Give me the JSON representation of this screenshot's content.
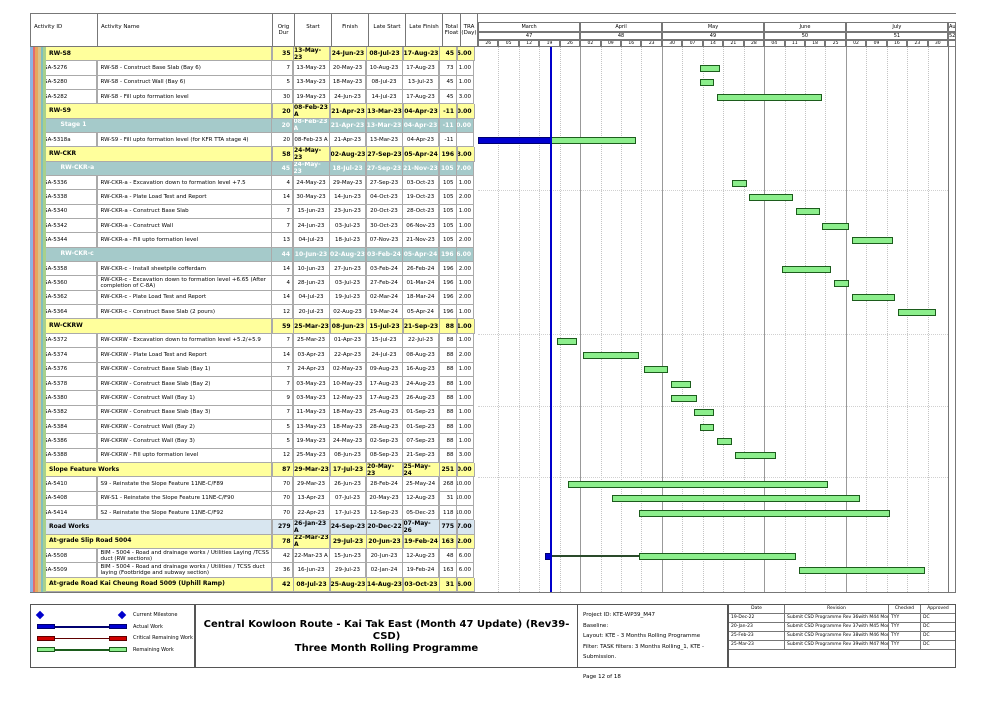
{
  "title_block": {
    "line1": "Central Kowloon Route - Kai Tak East (Month 47 Update) (Rev39- CSD)",
    "line2": "Three Month Rolling Programme"
  },
  "info_block": {
    "project_id": "Project ID: KTE-WP39_M47",
    "baseline": "Baseline:",
    "layout": "Layout: KTE - 3 Months Rolling Programme",
    "filter": "Filter: TASK filters: 3 Months Rolling_1, KTE - Submission.",
    "page": "Page 12 of 18"
  },
  "legend": [
    {
      "kind": "milestone",
      "label": "Current Milestone",
      "color": "#0000cc"
    },
    {
      "kind": "bar",
      "label": "Actual Work",
      "fill": "#0000d0",
      "border": "#000070"
    },
    {
      "kind": "bar",
      "label": "Critical Remaining Work",
      "fill": "#d00000",
      "border": "#600000"
    },
    {
      "kind": "bar",
      "label": "Remaining Work",
      "fill": "#8cee8c",
      "border": "#1c5c1c"
    }
  ],
  "revisions": {
    "headers": [
      "Date",
      "Revision",
      "Checked",
      "Approved"
    ],
    "rows": [
      [
        "19-Dec-22",
        "Submit CSD Programme Rev 36with M44 Mon...",
        "TYY",
        "DC"
      ],
      [
        "20-Jan-23",
        "Submit CSD Programme Rev 37with M45 Mon...",
        "TYY",
        "DC"
      ],
      [
        "25-Feb-23",
        "Submit CSD Programme Rev 38with M46 Mon...",
        "TYY",
        "DC"
      ],
      [
        "25-Mar-23",
        "Submit CSD Programme Rev 39with M47 Mon...",
        "TYY",
        "DC"
      ]
    ]
  },
  "table": {
    "columns": [
      "Activity ID",
      "Activity Name",
      "Orig Dur",
      "Start",
      "Finish",
      "Late Start",
      "Late Finish",
      "Total Float",
      "TRA (Day)"
    ],
    "rows": [
      {
        "type": "g1",
        "id": "",
        "name": "RW-S8",
        "d": "35",
        "s": "13-May-23",
        "f": "24-Jun-23",
        "ls": "08-Jul-23",
        "lf": "17-Aug-23",
        "fl": "45",
        "tra": "5.00"
      },
      {
        "type": "t",
        "id": "SA-5276",
        "name": "RW-S8 - Construct Base Slab (Bay 6)",
        "d": "7",
        "s": "13-May-23",
        "f": "20-May-23",
        "ls": "10-Aug-23",
        "lf": "17-Aug-23",
        "fl": "73",
        "tra": "1.00"
      },
      {
        "type": "t",
        "id": "SA-5280",
        "name": "RW-S8 - Construct Wall (Bay 6)",
        "d": "5",
        "s": "13-May-23",
        "f": "18-May-23",
        "ls": "08-Jul-23",
        "lf": "13-Jul-23",
        "fl": "45",
        "tra": "1.00"
      },
      {
        "type": "t",
        "id": "SA-5282",
        "name": "RW-S8 - Fill upto formation level",
        "d": "30",
        "s": "19-May-23",
        "f": "24-Jun-23",
        "ls": "14-Jul-23",
        "lf": "17-Aug-23",
        "fl": "45",
        "tra": "3.00"
      },
      {
        "type": "g1",
        "id": "",
        "name": "RW-S9",
        "d": "20",
        "s": "08-Feb-23 A",
        "f": "21-Apr-23",
        "ls": "13-Mar-23",
        "lf": "04-Apr-23",
        "fl": "-11",
        "tra": "0.00"
      },
      {
        "type": "g2",
        "id": "",
        "name": "Stage 1",
        "d": "20",
        "s": "08-Feb-23 A",
        "f": "21-Apr-23",
        "ls": "13-Mar-23",
        "lf": "04-Apr-23",
        "fl": "-11",
        "tra": "0.00"
      },
      {
        "type": "t",
        "id": "SA-5318a",
        "name": "RW-S9 - Fill upto formation level (for KFR TTA stage 4)",
        "d": "20",
        "s": "08-Feb-23 A",
        "f": "21-Apr-23",
        "ls": "13-Mar-23",
        "lf": "04-Apr-23",
        "fl": "-11",
        "tra": "",
        "bar": [
          {
            "k": "a",
            "s": "26-Feb-23",
            "f": "23-Mar-23"
          },
          {
            "k": "r",
            "s": "23-Mar-23",
            "f": "21-Apr-23"
          }
        ]
      },
      {
        "type": "g1",
        "id": "",
        "name": "RW-CKR",
        "d": "58",
        "s": "24-May-23",
        "f": "02-Aug-23",
        "ls": "27-Sep-23",
        "lf": "05-Apr-24",
        "fl": "196",
        "tra": "13.00"
      },
      {
        "type": "g2",
        "id": "",
        "name": "RW-CKR-a",
        "d": "45",
        "s": "24-May-23",
        "f": "18-Jul-23",
        "ls": "27-Sep-23",
        "lf": "21-Nov-23",
        "fl": "105",
        "tra": "7.00"
      },
      {
        "type": "t",
        "id": "SA-5336",
        "name": "RW-CKR-a - Excavation down to formation level +7.5",
        "d": "4",
        "s": "24-May-23",
        "f": "29-May-23",
        "ls": "27-Sep-23",
        "lf": "03-Oct-23",
        "fl": "105",
        "tra": "1.00"
      },
      {
        "type": "t",
        "id": "SA-5338",
        "name": "RW-CKR-a - Plate Load Test and Report",
        "d": "14",
        "s": "30-May-23",
        "f": "14-Jun-23",
        "ls": "04-Oct-23",
        "lf": "19-Oct-23",
        "fl": "105",
        "tra": "2.00"
      },
      {
        "type": "t",
        "id": "SA-5340",
        "name": "RW-CKR-a - Construct Base Slab",
        "d": "7",
        "s": "15-Jun-23",
        "f": "23-Jun-23",
        "ls": "20-Oct-23",
        "lf": "28-Oct-23",
        "fl": "105",
        "tra": "1.00"
      },
      {
        "type": "t",
        "id": "SA-5342",
        "name": "RW-CKR-a - Construct Wall",
        "d": "7",
        "s": "24-Jun-23",
        "f": "03-Jul-23",
        "ls": "30-Oct-23",
        "lf": "06-Nov-23",
        "fl": "105",
        "tra": "1.00"
      },
      {
        "type": "t",
        "id": "SA-5344",
        "name": "RW-CKR-a - Fill upto formation level",
        "d": "13",
        "s": "04-Jul-23",
        "f": "18-Jul-23",
        "ls": "07-Nov-23",
        "lf": "21-Nov-23",
        "fl": "105",
        "tra": "2.00"
      },
      {
        "type": "g2",
        "id": "",
        "name": "RW-CKR-c",
        "d": "44",
        "s": "10-Jun-23",
        "f": "02-Aug-23",
        "ls": "03-Feb-24",
        "lf": "05-Apr-24",
        "fl": "196",
        "tra": "6.00"
      },
      {
        "type": "t",
        "id": "SA-5358",
        "name": "RW-CKR-c - Install sheetpile cofferdam",
        "d": "14",
        "s": "10-Jun-23",
        "f": "27-Jun-23",
        "ls": "03-Feb-24",
        "lf": "26-Feb-24",
        "fl": "196",
        "tra": "2.00"
      },
      {
        "type": "t",
        "id": "SA-5360",
        "name": "RW-CKR-c - Excavation down to formation level +6.65 (After completion of C-8A)",
        "d": "4",
        "s": "28-Jun-23",
        "f": "03-Jul-23",
        "ls": "27-Feb-24",
        "lf": "01-Mar-24",
        "fl": "196",
        "tra": "1.00"
      },
      {
        "type": "t",
        "id": "SA-5362",
        "name": "RW-CKR-c - Plate Load Test and Report",
        "d": "14",
        "s": "04-Jul-23",
        "f": "19-Jul-23",
        "ls": "02-Mar-24",
        "lf": "18-Mar-24",
        "fl": "196",
        "tra": "2.00"
      },
      {
        "type": "t",
        "id": "SA-5364",
        "name": "RW-CKR-c - Construct Base Slab (2 pours)",
        "d": "12",
        "s": "20-Jul-23",
        "f": "02-Aug-23",
        "ls": "19-Mar-24",
        "lf": "05-Apr-24",
        "fl": "196",
        "tra": "1.00"
      },
      {
        "type": "g1",
        "id": "",
        "name": "RW-CKRW",
        "d": "59",
        "s": "25-Mar-23",
        "f": "08-Jun-23",
        "ls": "15-Jul-23",
        "lf": "21-Sep-23",
        "fl": "88",
        "tra": "11.00"
      },
      {
        "type": "t",
        "id": "SA-5372",
        "name": "RW-CKRW - Excavation down to formation level +5.2/+5.9",
        "d": "7",
        "s": "25-Mar-23",
        "f": "01-Apr-23",
        "ls": "15-Jul-23",
        "lf": "22-Jul-23",
        "fl": "88",
        "tra": "1.00"
      },
      {
        "type": "t",
        "id": "SA-5374",
        "name": "RW-CKRW - Plate Load Test and Report",
        "d": "14",
        "s": "03-Apr-23",
        "f": "22-Apr-23",
        "ls": "24-Jul-23",
        "lf": "08-Aug-23",
        "fl": "88",
        "tra": "2.00"
      },
      {
        "type": "t",
        "id": "SA-5376",
        "name": "RW-CKRW - Construct Base Slab (Bay 1)",
        "d": "7",
        "s": "24-Apr-23",
        "f": "02-May-23",
        "ls": "09-Aug-23",
        "lf": "16-Aug-23",
        "fl": "88",
        "tra": "1.00"
      },
      {
        "type": "t",
        "id": "SA-5378",
        "name": "RW-CKRW - Construct Base Slab (Bay 2)",
        "d": "7",
        "s": "03-May-23",
        "f": "10-May-23",
        "ls": "17-Aug-23",
        "lf": "24-Aug-23",
        "fl": "88",
        "tra": "1.00"
      },
      {
        "type": "t",
        "id": "SA-5380",
        "name": "RW-CKRW - Construct Wall (Bay 1)",
        "d": "9",
        "s": "03-May-23",
        "f": "12-May-23",
        "ls": "17-Aug-23",
        "lf": "26-Aug-23",
        "fl": "88",
        "tra": "1.00"
      },
      {
        "type": "t",
        "id": "SA-5382",
        "name": "RW-CKRW - Construct Base Slab (Bay 3)",
        "d": "7",
        "s": "11-May-23",
        "f": "18-May-23",
        "ls": "25-Aug-23",
        "lf": "01-Sep-23",
        "fl": "88",
        "tra": "1.00"
      },
      {
        "type": "t",
        "id": "SA-5384",
        "name": "RW-CKRW - Construct Wall (Bay 2)",
        "d": "5",
        "s": "13-May-23",
        "f": "18-May-23",
        "ls": "28-Aug-23",
        "lf": "01-Sep-23",
        "fl": "88",
        "tra": "1.00"
      },
      {
        "type": "t",
        "id": "SA-5386",
        "name": "RW-CKRW - Construct Wall (Bay 3)",
        "d": "5",
        "s": "19-May-23",
        "f": "24-May-23",
        "ls": "02-Sep-23",
        "lf": "07-Sep-23",
        "fl": "88",
        "tra": "1.00"
      },
      {
        "type": "t",
        "id": "SA-5388",
        "name": "RW-CKRW - Fill upto formation level",
        "d": "12",
        "s": "25-May-23",
        "f": "08-Jun-23",
        "ls": "08-Sep-23",
        "lf": "21-Sep-23",
        "fl": "88",
        "tra": "3.00"
      },
      {
        "type": "g1",
        "id": "",
        "name": "Slope Feature Works",
        "d": "87",
        "s": "29-Mar-23",
        "f": "17-Jul-23",
        "ls": "20-May-23",
        "lf": "25-May-24",
        "fl": "251",
        "tra": "30.00"
      },
      {
        "type": "t",
        "id": "SA-5410",
        "name": "S9 - Reinstate the Slope Feature 11NE-C/F89",
        "d": "70",
        "s": "29-Mar-23",
        "f": "26-Jun-23",
        "ls": "28-Feb-24",
        "lf": "25-May-24",
        "fl": "268",
        "tra": "10.00"
      },
      {
        "type": "t",
        "id": "SA-5408",
        "name": "RW-S1 - Reinstate the Slope Feature 11NE-C/F90",
        "d": "70",
        "s": "13-Apr-23",
        "f": "07-Jul-23",
        "ls": "20-May-23",
        "lf": "12-Aug-23",
        "fl": "31",
        "tra": "10.00"
      },
      {
        "type": "t",
        "id": "SA-5414",
        "name": "S2 - Reinstate the Slope Feature 11NE-C/F92",
        "d": "70",
        "s": "22-Apr-23",
        "f": "17-Jul-23",
        "ls": "12-Sep-23",
        "lf": "05-Dec-23",
        "fl": "118",
        "tra": "10.00"
      },
      {
        "type": "gb",
        "id": "",
        "name": "Road Works",
        "d": "279",
        "s": "26-Jan-23 A",
        "f": "24-Sep-23",
        "ls": "20-Dec-22",
        "lf": "07-May-26",
        "fl": "775",
        "tra": "77.00"
      },
      {
        "type": "g1",
        "id": "",
        "name": "At-grade Slip Road 5004",
        "d": "78",
        "s": "22-Mar-23 A",
        "f": "29-Jul-23",
        "ls": "20-Jun-23",
        "lf": "19-Feb-24",
        "fl": "163",
        "tra": "12.00"
      },
      {
        "type": "t",
        "id": "SA-5508",
        "name": "BIM - 5004 - Road and drainage works / Utilities Laying /TCSS duct (RW sections)",
        "d": "42",
        "s": "22-Mar-23 A",
        "f": "15-Jun-23",
        "ls": "20-Jun-23",
        "lf": "12-Aug-23",
        "fl": "48",
        "tra": "6.00",
        "bar": [
          {
            "k": "a",
            "s": "21-Mar-23",
            "f": "23-Mar-23"
          },
          {
            "k": "l",
            "s": "23-Mar-23",
            "f": "22-Apr-23"
          },
          {
            "k": "r",
            "s": "22-Apr-23",
            "f": "15-Jun-23"
          }
        ]
      },
      {
        "type": "t",
        "id": "SA-5509",
        "name": "BIM - 5004 - Road and drainage works / Utilities / TCSS duct laying (Footbridge and subway section)",
        "d": "36",
        "s": "16-Jun-23",
        "f": "29-Jul-23",
        "ls": "02-Jan-24",
        "lf": "19-Feb-24",
        "fl": "163",
        "tra": "6.00"
      },
      {
        "type": "g1",
        "id": "",
        "name": "At-grade Road Kai Cheung Road 5009 (Uphill Ramp)",
        "d": "42",
        "s": "08-Jul-23",
        "f": "25-Aug-23",
        "ls": "14-Aug-23",
        "lf": "03-Oct-23",
        "fl": "31",
        "tra": "6.00"
      }
    ]
  },
  "gantt": {
    "origin_date": "26-Feb-23",
    "data_date": "23-Mar-23",
    "months": [
      {
        "label": "March",
        "period": "47",
        "weeks": [
          "26",
          "05",
          "12",
          "19",
          "26"
        ]
      },
      {
        "label": "April",
        "period": "48",
        "weeks": [
          "02",
          "09",
          "16",
          "23"
        ]
      },
      {
        "label": "May",
        "period": "49",
        "weeks": [
          "30",
          "07",
          "14",
          "21",
          "28"
        ]
      },
      {
        "label": "June",
        "period": "50",
        "weeks": [
          "04",
          "11",
          "18",
          "25"
        ]
      },
      {
        "label": "July",
        "period": "51",
        "weeks": [
          "02",
          "09",
          "16",
          "23",
          "30"
        ]
      },
      {
        "label": "Augus",
        "period": "52",
        "weeks": []
      }
    ]
  },
  "colors": {
    "group_yellow": "#ffff9c",
    "group_teal": "#a5caca",
    "group_blue": "#d8e6f0",
    "remaining_bar": "#8cee8c",
    "actual_bar": "#0000d0",
    "critical_bar": "#d00000",
    "data_date_line": "#0000cc",
    "stripes": [
      "#8db3e2",
      "#e36c6c",
      "#e8a65c",
      "#d9c48a",
      "#7fbfbf",
      "#a8d08d"
    ]
  }
}
